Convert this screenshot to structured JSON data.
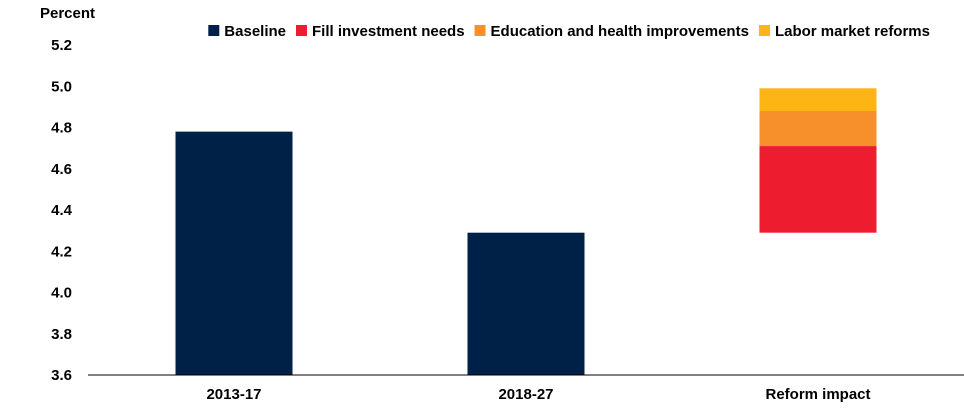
{
  "chart_data": {
    "type": "bar",
    "stacked": true,
    "ylabel": "Percent",
    "ylim": [
      3.6,
      5.2
    ],
    "y_ticks": [
      "3.6",
      "3.8",
      "4.0",
      "4.2",
      "4.4",
      "4.6",
      "4.8",
      "5.0",
      "5.2"
    ],
    "categories": [
      "2013-17",
      "2018-27",
      "Reform impact"
    ],
    "legend_position": "top",
    "series": [
      {
        "name": "Baseline",
        "color": "#002147",
        "values": [
          4.78,
          4.29,
          null
        ]
      },
      {
        "name": "Fill investment needs",
        "color": "#ED1C2E",
        "ranges": [
          null,
          null,
          [
            4.29,
            4.71
          ]
        ]
      },
      {
        "name": "Education and health improvements",
        "color": "#F7902B",
        "ranges": [
          null,
          null,
          [
            4.71,
            4.88
          ]
        ]
      },
      {
        "name": "Labor market reforms",
        "color": "#FDB515",
        "ranges": [
          null,
          null,
          [
            4.88,
            4.99
          ]
        ]
      }
    ]
  }
}
